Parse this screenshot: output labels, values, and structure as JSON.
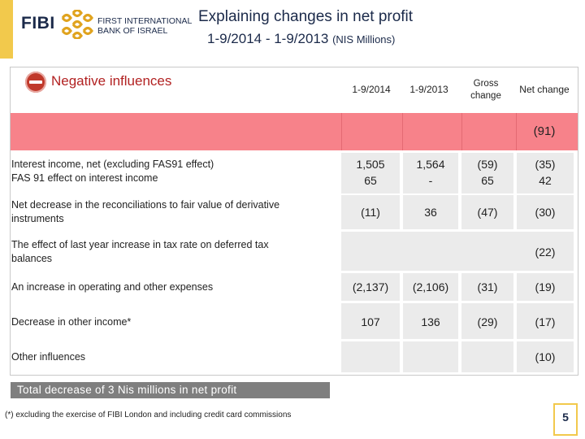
{
  "header": {
    "logo": "FIBI",
    "bank_name_line1": "FIRST INTERNATIONAL",
    "bank_name_line2": "BANK OF ISRAEL",
    "title_line1": "Explaining changes in net profit",
    "title_line2": "1-9/2014  -  1-9/2013",
    "title_units": "(NIS Millions)"
  },
  "section": {
    "title": "Negative influences"
  },
  "columns": [
    "1-9/2014",
    "1-9/2013",
    "Gross change",
    "Net change"
  ],
  "summary_row": {
    "net_change": "(91)"
  },
  "rows": [
    {
      "label_line1": "Interest income, net (excluding FAS91 effect)",
      "label_line2": "FAS 91 effect on interest income",
      "v2014": [
        "1,505",
        "65"
      ],
      "v2013": [
        "1,564",
        "-"
      ],
      "gross": [
        "(59)",
        "65"
      ],
      "net": [
        "(35)",
        "42"
      ]
    },
    {
      "label_line1": "Net decrease in the reconciliations to fair value of derivative",
      "label_line2": "instruments",
      "v2014": [
        "(11)"
      ],
      "v2013": [
        "36"
      ],
      "gross": [
        "(47)"
      ],
      "net": [
        "(30)"
      ]
    },
    {
      "label_line1": "The effect of last year increase in tax rate on deferred tax",
      "label_line2": "balances",
      "net": [
        "(22)"
      ]
    },
    {
      "label_line1": "An increase in operating and other expenses",
      "v2014": [
        "(2,137)"
      ],
      "v2013": [
        "(2,106)"
      ],
      "gross": [
        "(31)"
      ],
      "net": [
        "(19)"
      ]
    },
    {
      "label_line1": "Decrease in other income*",
      "v2014": [
        "107"
      ],
      "v2013": [
        "136"
      ],
      "gross": [
        "(29)"
      ],
      "net": [
        "(17)"
      ]
    },
    {
      "label_line1": "Other influences",
      "net": [
        "(10)"
      ]
    }
  ],
  "footer": {
    "total": "Total decrease of 3 Nis millions in net profit",
    "footnote": "(*) excluding  the exercise of  FIBI London and including credit card commissions",
    "page_number": "5"
  },
  "colors": {
    "accent": "#f2c94c",
    "negative_band": "#f7828a",
    "cell_grey": "#ebebeb",
    "total_bar": "#7f7f7f"
  }
}
